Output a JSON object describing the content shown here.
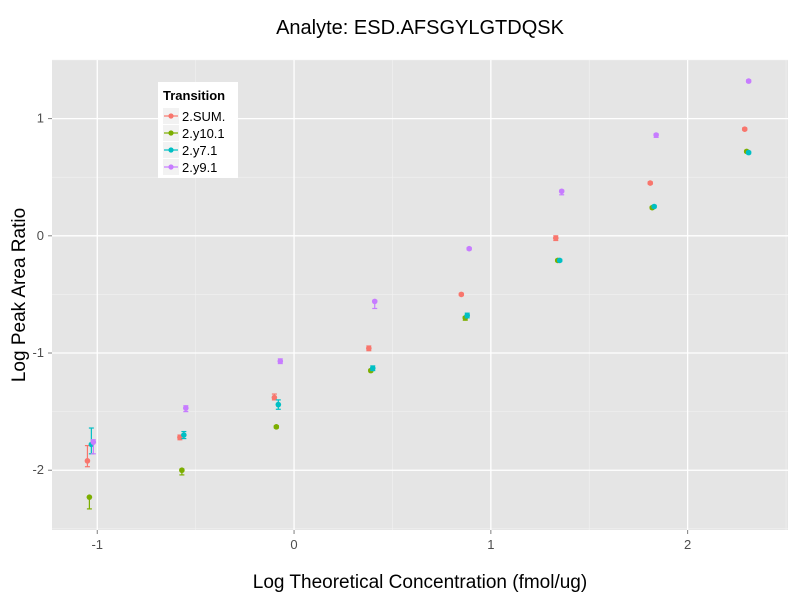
{
  "chart_data": {
    "type": "scatter",
    "title": "Analyte: ESD.AFSGYLGTDQSK",
    "xlabel": "Log Theoretical Concentration (fmol/ug)",
    "ylabel": "Log Peak Area Ratio",
    "xlim": [
      -1.23,
      2.51
    ],
    "ylim": [
      -2.51,
      1.5
    ],
    "xticks": [
      -1,
      0,
      1,
      2
    ],
    "xtick_labels": [
      "-1",
      "0",
      "1",
      "2"
    ],
    "yticks": [
      -2,
      -1,
      0,
      1
    ],
    "ytick_labels": [
      "-2",
      "-1",
      "0",
      "1"
    ],
    "grid": true,
    "legend": {
      "title": "Transition",
      "placement": "top-left"
    },
    "series": [
      {
        "name": "2.SUM.",
        "color": "#F8766D",
        "x": [
          -1.05,
          -0.58,
          -0.1,
          0.38,
          0.85,
          1.33,
          1.81,
          2.29
        ],
        "y": [
          -1.92,
          -1.72,
          -1.38,
          -0.96,
          -0.5,
          -0.02,
          0.45,
          0.91
        ],
        "ymin": [
          -1.97,
          -1.74,
          -1.4,
          -0.98,
          -0.51,
          -0.04,
          0.44,
          0.9
        ],
        "ymax": [
          -1.79,
          -1.7,
          -1.35,
          -0.94,
          -0.49,
          0.0,
          0.46,
          0.92
        ]
      },
      {
        "name": "2.y10.1",
        "color": "#7CAE00",
        "x": [
          -1.04,
          -0.57,
          -0.09,
          0.39,
          0.87,
          1.34,
          1.82,
          2.3
        ],
        "y": [
          -2.23,
          -2.0,
          -1.63,
          -1.15,
          -0.7,
          -0.21,
          0.24,
          0.72
        ],
        "ymin": [
          -2.33,
          -2.04,
          -1.64,
          -1.16,
          -0.72,
          -0.22,
          0.23,
          0.71
        ],
        "ymax": [
          -2.23,
          -1.99,
          -1.62,
          -1.14,
          -0.69,
          -0.2,
          0.25,
          0.73
        ]
      },
      {
        "name": "2.y7.1",
        "color": "#00BFC4",
        "x": [
          -1.03,
          -0.56,
          -0.08,
          0.4,
          0.88,
          1.35,
          1.83,
          2.31
        ],
        "y": [
          -1.78,
          -1.7,
          -1.44,
          -1.13,
          -0.68,
          -0.21,
          0.25,
          0.71
        ],
        "ymin": [
          -1.86,
          -1.73,
          -1.48,
          -1.15,
          -0.7,
          -0.22,
          0.24,
          0.7
        ],
        "ymax": [
          -1.64,
          -1.67,
          -1.4,
          -1.11,
          -0.66,
          -0.2,
          0.26,
          0.72
        ]
      },
      {
        "name": "2.y9.1",
        "color": "#C77CFF",
        "x": [
          -1.02,
          -0.55,
          -0.07,
          0.41,
          0.89,
          1.36,
          1.84,
          2.31
        ],
        "y": [
          -1.76,
          -1.47,
          -1.07,
          -0.56,
          -0.11,
          0.38,
          0.86,
          1.32
        ],
        "ymin": [
          -1.86,
          -1.5,
          -1.09,
          -0.62,
          -0.12,
          0.35,
          0.84,
          1.31
        ],
        "ymax": [
          -1.74,
          -1.45,
          -1.05,
          -0.55,
          -0.1,
          0.39,
          0.87,
          1.33
        ]
      }
    ]
  }
}
